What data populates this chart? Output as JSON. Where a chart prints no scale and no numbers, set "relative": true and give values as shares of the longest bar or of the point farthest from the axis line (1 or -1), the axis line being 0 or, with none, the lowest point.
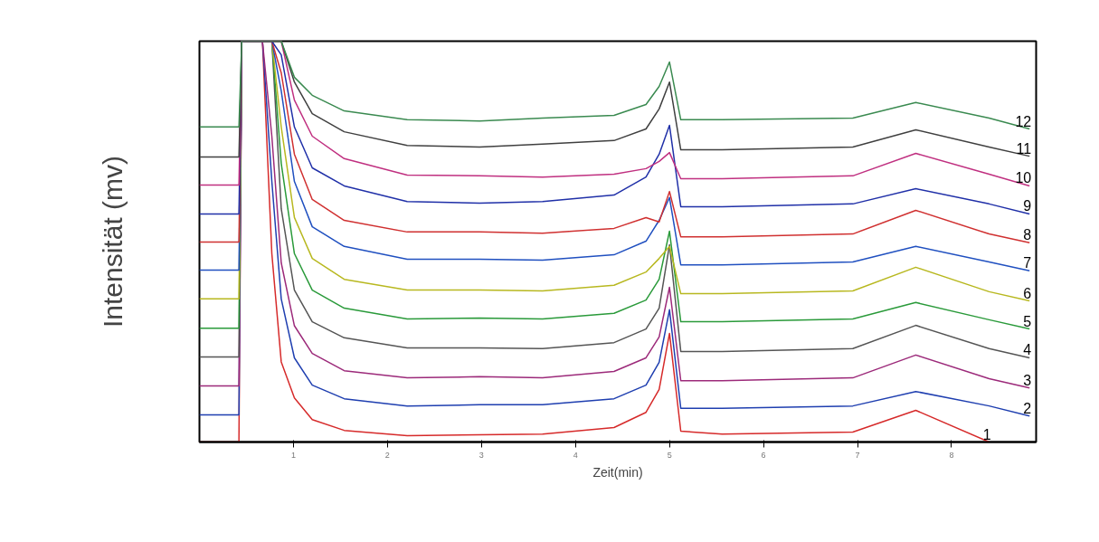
{
  "chart_data": {
    "type": "line",
    "xlabel": "Zeit(min)",
    "ylabel": "Intensität (mv)",
    "relative": true,
    "grid": false,
    "xlim": [
      0,
      8.9
    ],
    "xticks": [
      1,
      2,
      3,
      4,
      5,
      6,
      7,
      8
    ],
    "x": [
      0.0,
      0.42,
      0.45,
      0.67,
      0.77,
      0.87,
      1.01,
      1.2,
      1.54,
      2.21,
      2.98,
      3.65,
      4.41,
      4.75,
      4.89,
      5.0,
      5.12,
      5.56,
      6.95,
      7.62,
      8.4,
      8.83
    ],
    "series": [
      {
        "name": "1",
        "color": "#d62a2a",
        "values": [
          0,
          0,
          1,
          1,
          0.47,
          0.2,
          0.11,
          0.056,
          0.029,
          0.016,
          0.018,
          0.02,
          0.036,
          0.074,
          0.131,
          0.271,
          0.027,
          0.02,
          0.025,
          0.079,
          0,
          null
        ]
      },
      {
        "name": "2",
        "color": "#1f3fb0",
        "values": [
          0.068,
          0.068,
          1,
          1,
          0.65,
          0.357,
          0.21,
          0.142,
          0.108,
          0.09,
          0.093,
          0.093,
          0.108,
          0.142,
          0.199,
          0.33,
          0.084,
          0.084,
          0.09,
          0.126,
          0.09,
          0.065
        ]
      },
      {
        "name": "3",
        "color": "#9c2a7a",
        "values": [
          0.14,
          0.14,
          1,
          1,
          0.763,
          0.447,
          0.29,
          0.221,
          0.178,
          0.16,
          0.163,
          0.16,
          0.176,
          0.21,
          0.262,
          0.386,
          0.153,
          0.153,
          0.16,
          0.217,
          0.158,
          0.135
        ]
      },
      {
        "name": "4",
        "color": "#555555",
        "values": [
          0.212,
          0.212,
          1,
          1,
          1,
          0.582,
          0.379,
          0.3,
          0.26,
          0.235,
          0.235,
          0.233,
          0.248,
          0.282,
          0.334,
          0.492,
          0.226,
          0.226,
          0.233,
          0.291,
          0.233,
          0.21
        ]
      },
      {
        "name": "5",
        "color": "#2a9a3a",
        "values": [
          0.284,
          0.284,
          1,
          1,
          1,
          0.695,
          0.47,
          0.379,
          0.334,
          0.307,
          0.309,
          0.307,
          0.321,
          0.354,
          0.406,
          0.526,
          0.3,
          0.3,
          0.307,
          0.348,
          0.305,
          0.282
        ]
      },
      {
        "name": "6",
        "color": "#b8b820",
        "values": [
          0.357,
          0.357,
          1,
          1,
          1,
          0.786,
          0.56,
          0.458,
          0.406,
          0.379,
          0.379,
          0.377,
          0.391,
          0.424,
          0.458,
          0.488,
          0.37,
          0.37,
          0.377,
          0.436,
          0.375,
          0.352
        ]
      },
      {
        "name": "7",
        "color": "#2050c0",
        "values": [
          0.429,
          0.429,
          1,
          1,
          1,
          0.876,
          0.65,
          0.537,
          0.488,
          0.456,
          0.456,
          0.454,
          0.467,
          0.501,
          0.553,
          0.61,
          0.442,
          0.442,
          0.449,
          0.488,
          0.449,
          0.427
        ]
      },
      {
        "name": "8",
        "color": "#d03030",
        "values": [
          0.499,
          0.499,
          1,
          1,
          1,
          0.921,
          0.718,
          0.605,
          0.553,
          0.524,
          0.524,
          0.521,
          0.533,
          0.56,
          0.549,
          0.625,
          0.512,
          0.512,
          0.519,
          0.578,
          0.519,
          0.497
        ]
      },
      {
        "name": "9",
        "color": "#2030a8",
        "values": [
          0.569,
          0.569,
          1,
          1,
          1,
          0.966,
          0.786,
          0.684,
          0.639,
          0.6,
          0.596,
          0.6,
          0.616,
          0.661,
          0.718,
          0.79,
          0.587,
          0.587,
          0.594,
          0.632,
          0.594,
          0.569
        ]
      },
      {
        "name": "10",
        "color": "#c03080",
        "values": [
          0.641,
          0.641,
          1,
          1,
          1,
          1,
          0.853,
          0.763,
          0.707,
          0.666,
          0.664,
          0.661,
          0.668,
          0.682,
          0.7,
          0.722,
          0.657,
          0.657,
          0.664,
          0.72,
          0.668,
          0.639
        ]
      },
      {
        "name": "11",
        "color": "#404040",
        "values": [
          0.711,
          0.711,
          1,
          1,
          1,
          1,
          0.898,
          0.819,
          0.774,
          0.74,
          0.736,
          0.743,
          0.752,
          0.781,
          0.831,
          0.898,
          0.729,
          0.729,
          0.736,
          0.779,
          0.736,
          0.713
        ]
      },
      {
        "name": "12",
        "color": "#3a8a50",
        "values": [
          0.786,
          0.786,
          1,
          1,
          1,
          1,
          0.91,
          0.865,
          0.826,
          0.804,
          0.801,
          0.808,
          0.815,
          0.842,
          0.887,
          0.948,
          0.804,
          0.804,
          0.808,
          0.847,
          0.808,
          0.781
        ]
      }
    ]
  }
}
